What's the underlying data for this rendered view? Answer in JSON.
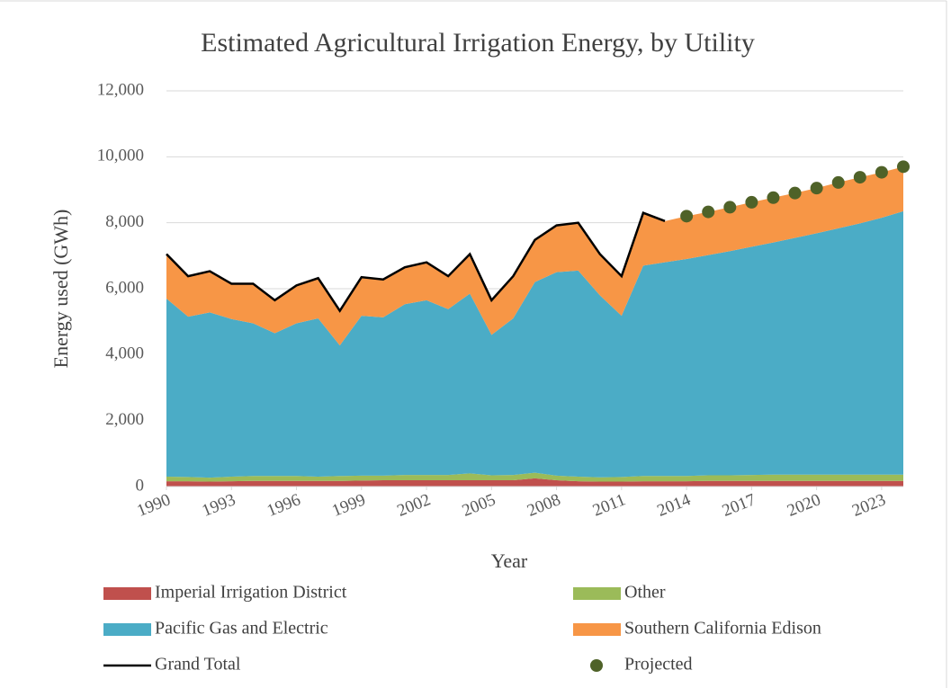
{
  "chart_data": {
    "type": "area",
    "stacked": true,
    "title": "Estimated Agricultural Irrigation Energy, by Utility",
    "xlabel": "Year",
    "ylabel": "Energy used (GWh)",
    "x": [
      1990,
      1991,
      1992,
      1993,
      1994,
      1995,
      1996,
      1997,
      1998,
      1999,
      2000,
      2001,
      2002,
      2003,
      2004,
      2005,
      2006,
      2007,
      2008,
      2009,
      2010,
      2011,
      2012,
      2013,
      2014,
      2015,
      2016,
      2017,
      2018,
      2019,
      2020,
      2021,
      2022,
      2023,
      2024
    ],
    "xlim": [
      1990,
      2024
    ],
    "xticks": [
      1990,
      1993,
      1996,
      1999,
      2002,
      2005,
      2008,
      2011,
      2014,
      2017,
      2020,
      2023
    ],
    "ylim": [
      0,
      12000
    ],
    "yticks": [
      0,
      {
        "value": 2000,
        "label": "2,000"
      },
      {
        "value": 4000,
        "label": "4,000"
      },
      {
        "value": 6000,
        "label": "6,000"
      },
      {
        "value": 8000,
        "label": "8,000"
      },
      {
        "value": 10000,
        "label": "10,000"
      },
      {
        "value": 12000,
        "label": "12,000"
      }
    ],
    "grid": true,
    "series": [
      {
        "name": "Imperial Irrigation District",
        "color": "#c0504d",
        "values": [
          160,
          160,
          150,
          160,
          170,
          170,
          170,
          170,
          170,
          180,
          190,
          190,
          190,
          190,
          190,
          190,
          190,
          250,
          190,
          160,
          150,
          150,
          160,
          160,
          160,
          170,
          170,
          170,
          170,
          170,
          170,
          170,
          170,
          170,
          170
        ]
      },
      {
        "name": "Other",
        "color": "#9bbb59",
        "values": [
          140,
          130,
          120,
          140,
          150,
          150,
          150,
          130,
          150,
          150,
          140,
          160,
          160,
          160,
          210,
          150,
          160,
          170,
          140,
          140,
          130,
          140,
          160,
          160,
          160,
          170,
          170,
          180,
          190,
          190,
          190,
          190,
          190,
          190,
          190
        ]
      },
      {
        "name": "Pacific Gas and Electric",
        "color": "#4bacc6",
        "values": [
          5400,
          4860,
          5010,
          4780,
          4630,
          4330,
          4630,
          4800,
          3960,
          4850,
          4800,
          5180,
          5300,
          5030,
          5450,
          4260,
          4750,
          5780,
          6170,
          6250,
          5520,
          4890,
          6380,
          6480,
          6580,
          6680,
          6800,
          6920,
          7040,
          7180,
          7320,
          7470,
          7620,
          7790,
          7990
        ]
      },
      {
        "name": "Southern California Edison",
        "color": "#f79646",
        "values": [
          1350,
          1230,
          1250,
          1070,
          1200,
          1000,
          1150,
          1220,
          1050,
          1170,
          1150,
          1120,
          1150,
          1000,
          1200,
          1050,
          1280,
          1280,
          1420,
          1450,
          1250,
          1200,
          1600,
          1250,
          1300,
          1310,
          1330,
          1350,
          1360,
          1360,
          1370,
          1390,
          1400,
          1380,
          1350
        ]
      },
      {
        "name": "Grand Total",
        "type": "line",
        "color": "#000000",
        "values": [
          7050,
          6380,
          6530,
          6150,
          6150,
          5650,
          6100,
          6320,
          5330,
          6350,
          6280,
          6650,
          6800,
          6380,
          7050,
          5650,
          6380,
          7480,
          7920,
          8000,
          7050,
          6380,
          8300,
          8050,
          null,
          null,
          null,
          null,
          null,
          null,
          null,
          null,
          null,
          null,
          null
        ]
      },
      {
        "name": "Projected",
        "type": "scatter",
        "color": "#4f6228",
        "values": [
          null,
          null,
          null,
          null,
          null,
          null,
          null,
          null,
          null,
          null,
          null,
          null,
          null,
          null,
          null,
          null,
          null,
          null,
          null,
          null,
          null,
          null,
          null,
          null,
          8200,
          8330,
          8470,
          8620,
          8760,
          8900,
          9050,
          9220,
          9380,
          9530,
          9700
        ]
      }
    ]
  }
}
